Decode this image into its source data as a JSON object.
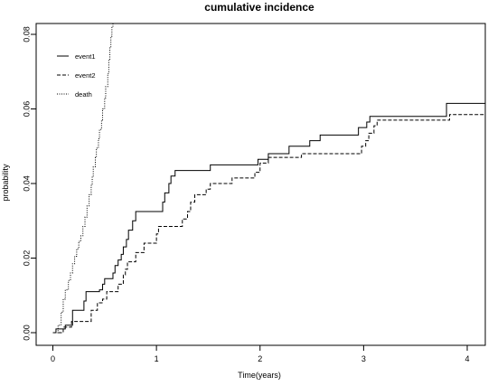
{
  "chart_data": {
    "type": "line",
    "title": "cumulative incidence",
    "xlabel": "Time(years)",
    "ylabel": "probability",
    "xlim": [
      0,
      4.2
    ],
    "ylim": [
      0,
      0.084
    ],
    "x_ticks": [
      "0",
      "1",
      "2",
      "3",
      "4"
    ],
    "y_ticks": [
      "0.00",
      "0.02",
      "0.04",
      "0.06",
      "0.08"
    ],
    "grid": false,
    "legend_position": "top-left",
    "series": [
      {
        "name": "event1",
        "line_style": "solid",
        "color": "#000000",
        "points": [
          [
            0,
            0
          ],
          [
            0.03,
            0.001
          ],
          [
            0.12,
            0.002
          ],
          [
            0.19,
            0.006
          ],
          [
            0.3,
            0.0085
          ],
          [
            0.32,
            0.011
          ],
          [
            0.45,
            0.0115
          ],
          [
            0.48,
            0.013
          ],
          [
            0.5,
            0.0145
          ],
          [
            0.58,
            0.016
          ],
          [
            0.6,
            0.018
          ],
          [
            0.63,
            0.0195
          ],
          [
            0.66,
            0.021
          ],
          [
            0.68,
            0.023
          ],
          [
            0.71,
            0.025
          ],
          [
            0.73,
            0.0275
          ],
          [
            0.77,
            0.03
          ],
          [
            0.8,
            0.0325
          ],
          [
            1.06,
            0.035
          ],
          [
            1.08,
            0.0375
          ],
          [
            1.12,
            0.04
          ],
          [
            1.14,
            0.042
          ],
          [
            1.18,
            0.0435
          ],
          [
            1.52,
            0.045
          ],
          [
            1.98,
            0.0465
          ],
          [
            2.08,
            0.048
          ],
          [
            2.28,
            0.05
          ],
          [
            2.48,
            0.0515
          ],
          [
            2.58,
            0.053
          ],
          [
            2.95,
            0.055
          ],
          [
            3.03,
            0.0565
          ],
          [
            3.06,
            0.058
          ],
          [
            3.8,
            0.0615
          ],
          [
            4.2,
            0.0615
          ]
        ]
      },
      {
        "name": "event2",
        "line_style": "dashed",
        "color": "#000000",
        "points": [
          [
            0,
            0
          ],
          [
            0.1,
            0.0015
          ],
          [
            0.18,
            0.003
          ],
          [
            0.37,
            0.006
          ],
          [
            0.43,
            0.008
          ],
          [
            0.48,
            0.009
          ],
          [
            0.52,
            0.011
          ],
          [
            0.63,
            0.013
          ],
          [
            0.68,
            0.0155
          ],
          [
            0.7,
            0.017
          ],
          [
            0.72,
            0.019
          ],
          [
            0.8,
            0.0215
          ],
          [
            0.88,
            0.024
          ],
          [
            1,
            0.0265
          ],
          [
            1.02,
            0.0285
          ],
          [
            1.25,
            0.0305
          ],
          [
            1.3,
            0.0325
          ],
          [
            1.33,
            0.035
          ],
          [
            1.37,
            0.037
          ],
          [
            1.48,
            0.0385
          ],
          [
            1.52,
            0.04
          ],
          [
            1.73,
            0.0415
          ],
          [
            1.95,
            0.043
          ],
          [
            2.0,
            0.0455
          ],
          [
            2.08,
            0.047
          ],
          [
            2.4,
            0.048
          ],
          [
            2.98,
            0.05
          ],
          [
            3.02,
            0.0515
          ],
          [
            3.05,
            0.0535
          ],
          [
            3.1,
            0.0555
          ],
          [
            3.13,
            0.057
          ],
          [
            3.83,
            0.0585
          ],
          [
            4.2,
            0.0585
          ]
        ]
      },
      {
        "name": "death",
        "line_style": "dotted",
        "color": "#000000",
        "points": [
          [
            0,
            0
          ],
          [
            0.05,
            0.002
          ],
          [
            0.08,
            0.0055
          ],
          [
            0.1,
            0.009
          ],
          [
            0.12,
            0.0115
          ],
          [
            0.15,
            0.014
          ],
          [
            0.17,
            0.016
          ],
          [
            0.19,
            0.0185
          ],
          [
            0.21,
            0.0205
          ],
          [
            0.23,
            0.0225
          ],
          [
            0.25,
            0.0245
          ],
          [
            0.27,
            0.026
          ],
          [
            0.29,
            0.0285
          ],
          [
            0.31,
            0.031
          ],
          [
            0.33,
            0.034
          ],
          [
            0.35,
            0.037
          ],
          [
            0.37,
            0.0395
          ],
          [
            0.38,
            0.042
          ],
          [
            0.39,
            0.0445
          ],
          [
            0.41,
            0.047
          ],
          [
            0.42,
            0.0495
          ],
          [
            0.44,
            0.052
          ],
          [
            0.45,
            0.0545
          ],
          [
            0.47,
            0.057
          ],
          [
            0.48,
            0.06
          ],
          [
            0.5,
            0.063
          ],
          [
            0.51,
            0.066
          ],
          [
            0.53,
            0.0695
          ],
          [
            0.54,
            0.073
          ],
          [
            0.55,
            0.0765
          ],
          [
            0.56,
            0.0795
          ],
          [
            0.57,
            0.082
          ],
          [
            0.58,
            0.084
          ]
        ]
      }
    ]
  }
}
